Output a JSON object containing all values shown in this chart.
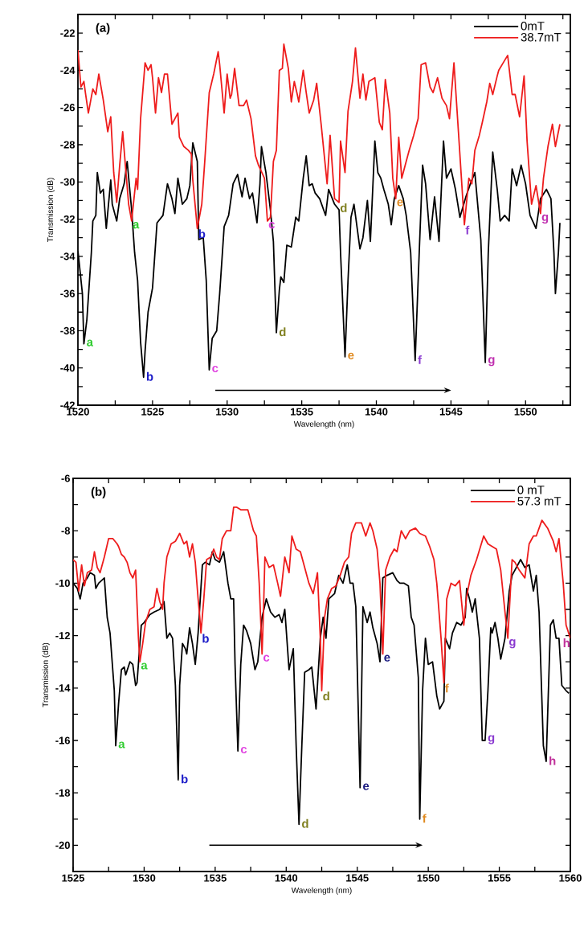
{
  "chart_data": [
    {
      "type": "line",
      "xlabel": "Wavelength (nm)",
      "ylabel": "Transmission (dB)",
      "xlim": [
        1520,
        1553
      ],
      "ylim": [
        -42,
        -21
      ],
      "xticks": [
        1520,
        {
          "value": 1522.5,
          "label": null
        },
        1525,
        {
          "value": 1527.5,
          "label": null
        },
        1530,
        {
          "value": 1532.5,
          "label": null
        },
        1535,
        {
          "value": 1537.5,
          "label": null
        },
        1540,
        {
          "value": 1542.5,
          "label": null
        },
        1545,
        {
          "value": 1547.5,
          "label": null
        },
        1550,
        {
          "value": 1552.5,
          "label": null
        }
      ],
      "yticks": [
        -42,
        {
          "value": -41,
          "label": null
        },
        -40,
        {
          "value": -39,
          "label": null
        },
        -38,
        {
          "value": -37,
          "label": null
        },
        -36,
        {
          "value": -35,
          "label": null
        },
        -34,
        {
          "value": -33,
          "label": null
        },
        -32,
        {
          "value": -31,
          "label": null
        },
        -30,
        {
          "value": -29,
          "label": null
        },
        -28,
        {
          "value": -27,
          "label": null
        },
        -26,
        {
          "value": -25,
          "label": null
        },
        -24,
        {
          "value": -23,
          "label": null
        },
        -22
      ],
      "legend": "top right",
      "line_style": "solid",
      "series": [
        {
          "name": "0mT",
          "color": "#000000",
          "x": [
            1520.0,
            1520.3,
            1520.4,
            1520.6,
            1520.9,
            1521.0,
            1521.2,
            1521.3,
            1521.5,
            1521.7,
            1521.9,
            1522.2,
            1522.3,
            1522.6,
            1522.8,
            1523.1,
            1523.3,
            1523.6,
            1523.8,
            1524.0,
            1524.2,
            1524.4,
            1524.5,
            1524.7,
            1525.0,
            1525.3,
            1525.7,
            1526.0,
            1526.3,
            1526.5,
            1526.7,
            1527.0,
            1527.3,
            1527.5,
            1527.7,
            1528.0,
            1528.1,
            1528.4,
            1528.6,
            1528.8,
            1529.0,
            1529.3,
            1529.5,
            1529.8,
            1530.1,
            1530.4,
            1530.7,
            1531.0,
            1531.2,
            1531.5,
            1531.7,
            1532.0,
            1532.2,
            1532.3,
            1532.6,
            1532.9,
            1533.1,
            1533.3,
            1533.5,
            1533.6,
            1533.8,
            1534.0,
            1534.3,
            1534.6,
            1534.8,
            1535.1,
            1535.3,
            1535.5,
            1535.7,
            1535.9,
            1536.2,
            1536.6,
            1536.8,
            1537.2,
            1537.5,
            1537.6,
            1537.9,
            1538.1,
            1538.3,
            1538.5,
            1538.6,
            1538.9,
            1539.1,
            1539.4,
            1539.6,
            1539.9,
            1540.1,
            1540.3,
            1540.5,
            1540.8,
            1541.0,
            1541.2,
            1541.5,
            1541.8,
            1542.0,
            1542.3,
            1542.6,
            1542.8,
            1543.1,
            1543.3,
            1543.6,
            1543.9,
            1544.2,
            1544.5,
            1544.7,
            1545.0,
            1545.3,
            1545.6,
            1546.0,
            1546.3,
            1546.6,
            1547.0,
            1547.3,
            1547.5,
            1547.8,
            1548.1,
            1548.3,
            1548.6,
            1548.9,
            1549.1,
            1549.4,
            1549.7,
            1550.0,
            1550.3,
            1550.7,
            1551.0,
            1551.4,
            1551.7,
            1551.9,
            1552.0,
            1552.2,
            1552.3
          ],
          "values": [
            -33.7,
            -36.0,
            -38.7,
            -37.4,
            -33.8,
            -32.1,
            -31.8,
            -29.5,
            -30.6,
            -30.4,
            -32.5,
            -29.9,
            -31.2,
            -32.1,
            -30.9,
            -30.1,
            -28.9,
            -31.5,
            -33.8,
            -35.3,
            -38.6,
            -40.5,
            -39.1,
            -37.0,
            -35.7,
            -32.2,
            -31.8,
            -30.1,
            -30.9,
            -31.7,
            -29.8,
            -31.2,
            -30.9,
            -30.2,
            -27.9,
            -28.9,
            -33.1,
            -33.0,
            -35.3,
            -40.1,
            -38.4,
            -38.0,
            -36.0,
            -32.4,
            -31.8,
            -30.1,
            -29.6,
            -30.8,
            -29.8,
            -30.9,
            -30.6,
            -32.2,
            -30.1,
            -28.1,
            -29.5,
            -31.5,
            -33.2,
            -38.1,
            -35.8,
            -35.1,
            -35.4,
            -33.4,
            -33.5,
            -31.9,
            -32.1,
            -29.8,
            -28.6,
            -30.2,
            -30.1,
            -30.6,
            -30.9,
            -31.8,
            -30.4,
            -31.2,
            -31.5,
            -33.8,
            -39.4,
            -35.3,
            -31.9,
            -31.2,
            -31.8,
            -33.6,
            -33.0,
            -31.0,
            -33.2,
            -27.8,
            -29.5,
            -29.8,
            -30.4,
            -31.2,
            -32.3,
            -30.9,
            -30.2,
            -30.9,
            -31.8,
            -33.8,
            -39.6,
            -35.3,
            -29.1,
            -30.1,
            -33.1,
            -30.8,
            -33.2,
            -27.8,
            -29.8,
            -29.3,
            -30.4,
            -31.9,
            -30.8,
            -30.1,
            -29.5,
            -33.1,
            -39.7,
            -33.8,
            -28.4,
            -30.4,
            -32.1,
            -31.8,
            -32.1,
            -29.3,
            -30.2,
            -29.1,
            -30.1,
            -31.8,
            -32.5,
            -30.9,
            -30.4,
            -30.9,
            -33.8,
            -36.0,
            -33.8,
            -32.2
          ]
        },
        {
          "name": "38.7mT",
          "color": "#ee1c1c",
          "x": [
            1520.0,
            1520.2,
            1520.4,
            1520.5,
            1520.7,
            1521.0,
            1521.2,
            1521.4,
            1521.7,
            1522.0,
            1522.2,
            1522.4,
            1522.6,
            1522.8,
            1523.0,
            1523.2,
            1523.4,
            1523.6,
            1523.9,
            1524.0,
            1524.2,
            1524.5,
            1524.7,
            1524.9,
            1525.0,
            1525.2,
            1525.4,
            1525.6,
            1525.8,
            1526.0,
            1526.3,
            1526.5,
            1526.7,
            1526.8,
            1527.1,
            1527.4,
            1527.6,
            1527.7,
            1528.0,
            1528.3,
            1528.5,
            1528.8,
            1529.1,
            1529.4,
            1529.5,
            1529.8,
            1530.0,
            1530.2,
            1530.3,
            1530.5,
            1530.8,
            1531.1,
            1531.3,
            1531.6,
            1531.9,
            1532.1,
            1532.5,
            1532.7,
            1532.9,
            1533.1,
            1533.3,
            1533.5,
            1533.7,
            1533.8,
            1534.1,
            1534.3,
            1534.5,
            1534.7,
            1534.8,
            1535.1,
            1535.3,
            1535.5,
            1535.8,
            1536.0,
            1536.3,
            1536.7,
            1536.9,
            1537.2,
            1537.5,
            1537.6,
            1537.9,
            1538.1,
            1538.4,
            1538.6,
            1538.9,
            1539.1,
            1539.3,
            1539.5,
            1539.9,
            1540.2,
            1540.4,
            1540.6,
            1540.9,
            1541.1,
            1541.3,
            1541.5,
            1541.7,
            1542.0,
            1542.2,
            1542.5,
            1542.8,
            1543.0,
            1543.3,
            1543.6,
            1543.8,
            1544.1,
            1544.4,
            1544.7,
            1544.9,
            1545.2,
            1545.5,
            1545.7,
            1545.9,
            1546.2,
            1546.4,
            1546.6,
            1546.9,
            1547.1,
            1547.4,
            1547.6,
            1547.8,
            1548.1,
            1548.2,
            1548.5,
            1548.8,
            1549.1,
            1549.3,
            1549.6,
            1549.9,
            1550.1,
            1550.4,
            1550.7,
            1551.0,
            1551.2,
            1551.5,
            1551.8,
            1552.0,
            1552.3
          ],
          "values": [
            -22.9,
            -24.9,
            -24.6,
            -25.2,
            -26.3,
            -25.0,
            -25.3,
            -24.2,
            -25.6,
            -27.3,
            -26.5,
            -29.5,
            -31.1,
            -29.1,
            -27.3,
            -29.3,
            -31.2,
            -32.1,
            -29.8,
            -30.4,
            -26.6,
            -23.6,
            -24.0,
            -23.7,
            -24.4,
            -26.3,
            -24.4,
            -25.2,
            -24.2,
            -24.2,
            -26.9,
            -26.6,
            -26.3,
            -27.6,
            -28.1,
            -28.3,
            -28.5,
            -29.9,
            -32.5,
            -31.2,
            -28.9,
            -25.2,
            -24.2,
            -23.0,
            -23.7,
            -26.3,
            -24.2,
            -25.5,
            -25.3,
            -23.9,
            -25.9,
            -25.9,
            -25.6,
            -26.6,
            -28.6,
            -29.1,
            -29.8,
            -32.1,
            -31.9,
            -28.9,
            -28.3,
            -24.0,
            -23.9,
            -22.6,
            -23.9,
            -25.7,
            -24.6,
            -25.3,
            -25.7,
            -24.0,
            -25.2,
            -26.3,
            -25.6,
            -24.7,
            -26.9,
            -30.1,
            -27.5,
            -30.9,
            -31.1,
            -27.8,
            -29.5,
            -26.2,
            -24.6,
            -22.8,
            -25.5,
            -24.2,
            -25.6,
            -24.6,
            -24.4,
            -26.8,
            -27.2,
            -24.5,
            -26.3,
            -29.8,
            -30.9,
            -27.6,
            -29.8,
            -28.9,
            -28.3,
            -27.5,
            -26.6,
            -23.7,
            -23.6,
            -24.9,
            -25.2,
            -24.4,
            -25.5,
            -25.9,
            -26.6,
            -23.6,
            -27.3,
            -29.8,
            -32.3,
            -29.8,
            -30.1,
            -28.3,
            -27.5,
            -26.8,
            -25.7,
            -24.7,
            -25.3,
            -24.3,
            -24.0,
            -23.6,
            -23.2,
            -25.3,
            -25.3,
            -26.5,
            -24.3,
            -27.8,
            -31.2,
            -30.2,
            -31.7,
            -29.8,
            -28.1,
            -26.9,
            -28.1,
            -26.9
          ]
        }
      ],
      "annotations": [
        "(a)",
        {
          "text": "a",
          "x": 1520.4,
          "y": -38.7
        },
        {
          "text": "a",
          "x": 1523.6,
          "y": -32.1
        },
        {
          "text": "b",
          "x": 1524.4,
          "y": -40.5
        },
        {
          "text": "b",
          "x": 1528.0,
          "y": -32.5
        },
        {
          "text": "c",
          "x": 1528.8,
          "y": -40.1
        },
        {
          "text": "c",
          "x": 1532.7,
          "y": -32.1
        },
        {
          "text": "d",
          "x": 1533.3,
          "y": -38.1
        },
        {
          "text": "d",
          "x": 1537.5,
          "y": -31.1
        },
        {
          "text": "e",
          "x": 1537.9,
          "y": -39.4
        },
        {
          "text": "e",
          "x": 1541.3,
          "y": -30.9
        },
        {
          "text": "f",
          "x": 1542.6,
          "y": -39.6
        },
        {
          "text": "f",
          "x": 1545.9,
          "y": -32.3
        },
        {
          "text": "g",
          "x": 1547.3,
          "y": -39.7
        },
        {
          "text": "g",
          "x": 1551.0,
          "y": -31.7
        }
      ]
    },
    {
      "type": "line",
      "xlabel": "Wavelength (nm)",
      "ylabel": "Transmission (dB)",
      "xlim": [
        1525,
        1560
      ],
      "ylim": [
        -21,
        -6
      ],
      "xticks": [
        1525,
        {
          "value": 1527.5,
          "label": null
        },
        1530,
        {
          "value": 1532.5,
          "label": null
        },
        1535,
        {
          "value": 1537.5,
          "label": null
        },
        1540,
        {
          "value": 1542.5,
          "label": null
        },
        1545,
        {
          "value": 1547.5,
          "label": null
        },
        1550,
        {
          "value": 1552.5,
          "label": null
        },
        1555,
        {
          "value": 1557.5,
          "label": null
        },
        1560
      ],
      "yticks": [
        -20,
        {
          "value": -19,
          "label": null
        },
        -18,
        {
          "value": -17,
          "label": null
        },
        -16,
        {
          "value": -15,
          "label": null
        },
        -14,
        {
          "value": -13,
          "label": null
        },
        -12,
        {
          "value": -11,
          "label": null
        },
        -10,
        {
          "value": -9,
          "label": null
        },
        -8,
        {
          "value": -7,
          "label": null
        },
        -6
      ],
      "legend": "top right",
      "line_style": "solid",
      "series": [
        {
          "name": "0 mT",
          "color": "#000000",
          "x": [
            1525.0,
            1525.3,
            1525.5,
            1525.7,
            1526.0,
            1526.2,
            1526.5,
            1526.6,
            1526.8,
            1527.0,
            1527.2,
            1527.4,
            1527.6,
            1527.9,
            1528.0,
            1528.2,
            1528.4,
            1528.6,
            1528.7,
            1529.0,
            1529.2,
            1529.4,
            1529.5,
            1529.8,
            1530.0,
            1530.4,
            1530.7,
            1531.1,
            1531.4,
            1531.6,
            1531.8,
            1532.0,
            1532.2,
            1532.4,
            1532.5,
            1532.7,
            1532.9,
            1533.0,
            1533.2,
            1533.4,
            1533.6,
            1533.8,
            1534.1,
            1534.3,
            1534.6,
            1534.8,
            1535.0,
            1535.3,
            1535.6,
            1535.9,
            1536.1,
            1536.3,
            1536.4,
            1536.6,
            1536.8,
            1537.0,
            1537.2,
            1537.5,
            1537.8,
            1538.0,
            1538.3,
            1538.6,
            1538.9,
            1539.2,
            1539.5,
            1539.7,
            1539.9,
            1540.2,
            1540.5,
            1540.7,
            1540.9,
            1541.1,
            1541.3,
            1541.6,
            1541.8,
            1542.1,
            1542.4,
            1542.6,
            1542.8,
            1543.0,
            1543.4,
            1543.7,
            1544.0,
            1544.3,
            1544.5,
            1544.7,
            1544.9,
            1545.2,
            1545.4,
            1545.7,
            1545.9,
            1546.1,
            1546.4,
            1546.6,
            1546.8,
            1547.1,
            1547.5,
            1547.8,
            1548.0,
            1548.3,
            1548.6,
            1548.8,
            1549.0,
            1549.3,
            1549.4,
            1549.6,
            1549.8,
            1550.0,
            1550.3,
            1550.6,
            1550.8,
            1551.1,
            1551.2,
            1551.5,
            1551.7,
            1552.0,
            1552.3,
            1552.6,
            1552.7,
            1552.9,
            1553.1,
            1553.3,
            1553.6,
            1553.8,
            1554.0,
            1554.2,
            1554.4,
            1554.5,
            1554.7,
            1554.9,
            1555.1,
            1555.4,
            1555.7,
            1555.9,
            1556.2,
            1556.5,
            1556.8,
            1557.1,
            1557.4,
            1557.6,
            1557.8,
            1558.1,
            1558.3,
            1558.6,
            1558.8,
            1559.0,
            1559.2,
            1559.4,
            1559.7,
            1559.9
          ],
          "values": [
            -10.0,
            -10.2,
            -10.6,
            -10.0,
            -9.8,
            -9.6,
            -9.7,
            -10.2,
            -10.0,
            -9.9,
            -9.8,
            -11.3,
            -11.9,
            -14.1,
            -16.2,
            -14.6,
            -13.3,
            -13.2,
            -13.5,
            -13.0,
            -13.1,
            -13.9,
            -13.8,
            -11.6,
            -11.5,
            -11.2,
            -11.1,
            -11.0,
            -10.7,
            -12.1,
            -11.9,
            -12.1,
            -13.9,
            -17.5,
            -13.9,
            -12.3,
            -12.5,
            -12.7,
            -11.7,
            -12.3,
            -13.1,
            -11.9,
            -9.3,
            -9.2,
            -9.3,
            -8.8,
            -9.1,
            -9.2,
            -8.8,
            -10.0,
            -10.6,
            -10.6,
            -13.1,
            -16.4,
            -13.1,
            -11.6,
            -11.8,
            -12.3,
            -13.3,
            -13.0,
            -11.3,
            -10.6,
            -11.1,
            -11.3,
            -11.2,
            -11.5,
            -11.0,
            -13.3,
            -12.5,
            -16.2,
            -19.2,
            -16.2,
            -13.4,
            -13.3,
            -13.2,
            -14.8,
            -12.1,
            -11.3,
            -12.1,
            -10.6,
            -10.4,
            -9.7,
            -10.0,
            -9.3,
            -10.0,
            -10.0,
            -10.9,
            -17.8,
            -10.9,
            -11.5,
            -11.1,
            -11.7,
            -12.3,
            -13.0,
            -9.8,
            -9.7,
            -9.6,
            -9.9,
            -10.0,
            -10.0,
            -10.1,
            -11.3,
            -11.6,
            -13.6,
            -19.0,
            -14.1,
            -12.1,
            -13.1,
            -13.0,
            -14.3,
            -14.8,
            -14.5,
            -12.1,
            -12.5,
            -11.9,
            -11.5,
            -11.6,
            -11.3,
            -10.2,
            -10.6,
            -11.1,
            -10.6,
            -12.1,
            -16.0,
            -16.0,
            -14.1,
            -11.7,
            -11.9,
            -11.5,
            -12.1,
            -12.9,
            -12.1,
            -10.3,
            -9.7,
            -9.4,
            -9.1,
            -9.4,
            -9.3,
            -10.3,
            -9.7,
            -11.1,
            -16.2,
            -16.8,
            -11.6,
            -11.4,
            -12.1,
            -12.1,
            -13.9,
            -14.1,
            -14.2
          ]
        },
        {
          "name": "57.3 mT",
          "color": "#ee1c1c",
          "x": [
            1525.0,
            1525.2,
            1525.4,
            1525.6,
            1525.8,
            1526.0,
            1526.3,
            1526.5,
            1526.7,
            1526.9,
            1527.2,
            1527.5,
            1527.8,
            1528.1,
            1528.2,
            1528.4,
            1528.6,
            1528.8,
            1529.0,
            1529.2,
            1529.4,
            1529.6,
            1529.7,
            1529.9,
            1530.1,
            1530.4,
            1530.7,
            1530.9,
            1531.1,
            1531.3,
            1531.4,
            1531.6,
            1531.9,
            1532.2,
            1532.5,
            1532.8,
            1533.0,
            1533.2,
            1533.4,
            1533.6,
            1533.8,
            1533.9,
            1534.0,
            1534.2,
            1534.4,
            1534.7,
            1534.9,
            1535.1,
            1535.3,
            1535.5,
            1535.8,
            1536.1,
            1536.3,
            1536.5,
            1536.8,
            1537.0,
            1537.3,
            1537.7,
            1537.9,
            1538.1,
            1538.3,
            1538.4,
            1538.5,
            1538.8,
            1539.1,
            1539.4,
            1539.6,
            1539.7,
            1539.9,
            1540.2,
            1540.4,
            1540.7,
            1541.0,
            1541.2,
            1541.6,
            1541.9,
            1542.2,
            1542.4,
            1542.5,
            1542.7,
            1542.9,
            1543.2,
            1543.5,
            1543.8,
            1544.1,
            1544.4,
            1544.6,
            1544.9,
            1545.3,
            1545.6,
            1545.9,
            1546.1,
            1546.4,
            1546.6,
            1546.8,
            1547.0,
            1547.3,
            1547.6,
            1547.8,
            1548.1,
            1548.4,
            1548.7,
            1549.1,
            1549.4,
            1549.8,
            1550.1,
            1550.4,
            1550.6,
            1550.9,
            1551.1,
            1551.3,
            1551.6,
            1551.9,
            1552.2,
            1552.5,
            1552.7,
            1553.0,
            1553.4,
            1553.9,
            1554.2,
            1554.5,
            1554.8,
            1555.1,
            1555.4,
            1555.6,
            1555.9,
            1556.1,
            1556.4,
            1556.8,
            1557.1,
            1557.4,
            1557.6,
            1558.0,
            1558.4,
            1558.8,
            1559.0,
            1559.2,
            1559.5,
            1559.7,
            1560.0
          ],
          "values": [
            -9.1,
            -9.2,
            -10.3,
            -9.3,
            -10.1,
            -9.6,
            -9.5,
            -8.8,
            -9.4,
            -9.6,
            -9.0,
            -8.3,
            -8.3,
            -8.5,
            -8.6,
            -8.9,
            -9.0,
            -9.2,
            -9.6,
            -9.8,
            -9.5,
            -12.1,
            -13.0,
            -12.3,
            -11.5,
            -11.0,
            -10.9,
            -10.2,
            -10.7,
            -11.0,
            -10.0,
            -9.0,
            -8.5,
            -8.4,
            -8.1,
            -8.5,
            -8.4,
            -9.0,
            -8.5,
            -9.2,
            -10.6,
            -11.2,
            -11.9,
            -10.6,
            -9.1,
            -9.0,
            -8.7,
            -9.0,
            -9.1,
            -8.3,
            -8.0,
            -8.0,
            -7.1,
            -7.1,
            -7.2,
            -7.2,
            -7.2,
            -8.0,
            -8.2,
            -10.0,
            -12.7,
            -11.1,
            -9.0,
            -9.4,
            -9.3,
            -10.0,
            -10.5,
            -10.0,
            -9.0,
            -9.6,
            -8.2,
            -8.7,
            -8.8,
            -9.2,
            -10.0,
            -10.4,
            -9.6,
            -12.1,
            -14.1,
            -11.3,
            -10.6,
            -10.2,
            -10.1,
            -9.7,
            -9.2,
            -9.0,
            -8.1,
            -7.7,
            -7.7,
            -8.2,
            -7.7,
            -8.0,
            -8.7,
            -10.0,
            -12.7,
            -9.5,
            -9.0,
            -8.7,
            -8.8,
            -8.0,
            -8.3,
            -8.0,
            -7.9,
            -8.1,
            -8.2,
            -8.6,
            -9.1,
            -10.0,
            -12.1,
            -13.8,
            -10.6,
            -10.0,
            -10.1,
            -9.9,
            -11.6,
            -10.5,
            -9.7,
            -9.1,
            -8.2,
            -8.5,
            -8.6,
            -8.7,
            -9.5,
            -11.1,
            -12.1,
            -9.1,
            -9.2,
            -9.5,
            -9.8,
            -8.5,
            -8.2,
            -8.2,
            -7.6,
            -7.9,
            -8.4,
            -8.8,
            -8.3,
            -10.0,
            -11.6,
            -12.1
          ]
        }
      ],
      "annotations": [
        "(b)",
        {
          "text": "a",
          "x": 1528.0,
          "y": -16.2
        },
        {
          "text": "a",
          "x": 1529.7,
          "y": -13.0
        },
        {
          "text": "b",
          "x": 1532.4,
          "y": -17.5
        },
        {
          "text": "b",
          "x": 1534.0,
          "y": -11.9
        },
        {
          "text": "c",
          "x": 1536.6,
          "y": -16.4
        },
        {
          "text": "c",
          "x": 1538.3,
          "y": -12.7
        },
        {
          "text": "d",
          "x": 1540.9,
          "y": -19.2
        },
        {
          "text": "d",
          "x": 1542.5,
          "y": -14.1
        },
        {
          "text": "e",
          "x": 1545.2,
          "y": -17.8
        },
        {
          "text": "e",
          "x": 1546.8,
          "y": -12.7
        },
        {
          "text": "f",
          "x": 1549.4,
          "y": -19.0
        },
        {
          "text": "f",
          "x": 1551.1,
          "y": -13.8
        },
        {
          "text": "g",
          "x": 1554.0,
          "y": -16.0
        },
        {
          "text": "g",
          "x": 1555.6,
          "y": -12.1
        },
        {
          "text": "h",
          "x": 1558.3,
          "y": -16.8
        },
        {
          "text": "h",
          "x": 1560.0,
          "y": -12.1
        }
      ]
    }
  ]
}
